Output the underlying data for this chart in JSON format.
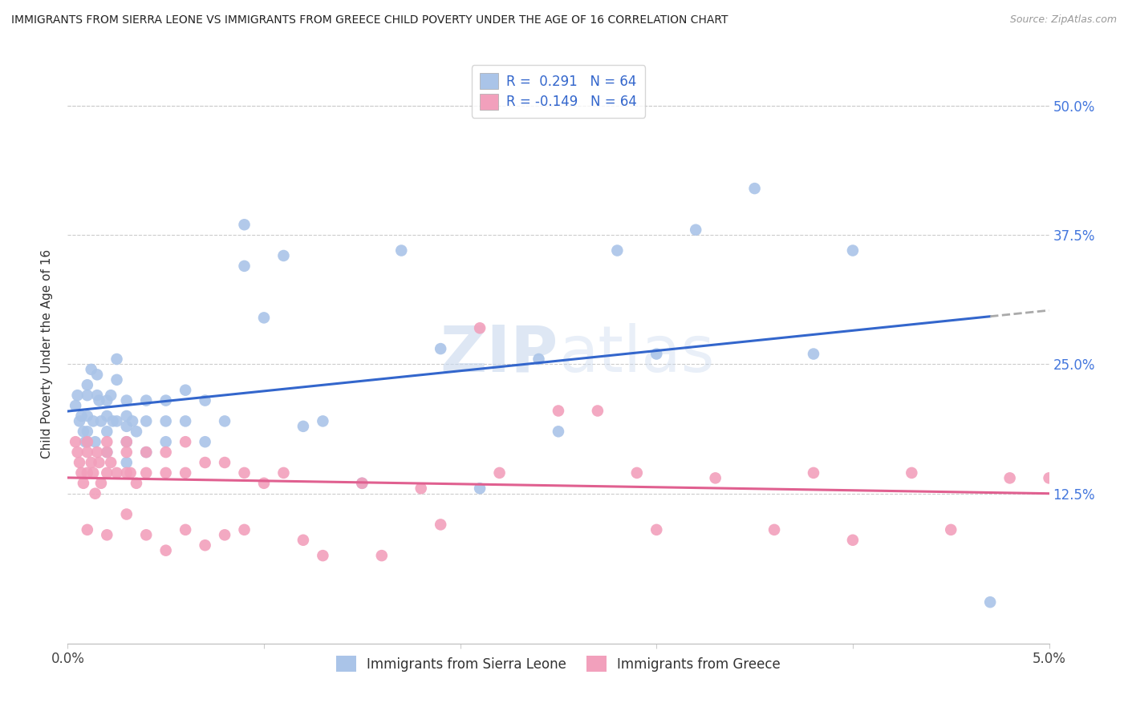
{
  "title": "IMMIGRANTS FROM SIERRA LEONE VS IMMIGRANTS FROM GREECE CHILD POVERTY UNDER THE AGE OF 16 CORRELATION CHART",
  "source": "Source: ZipAtlas.com",
  "ylabel": "Child Poverty Under the Age of 16",
  "yticks": [
    "12.5%",
    "25.0%",
    "37.5%",
    "50.0%"
  ],
  "ytick_vals": [
    0.125,
    0.25,
    0.375,
    0.5
  ],
  "xlim": [
    0.0,
    0.05
  ],
  "ylim": [
    -0.02,
    0.54
  ],
  "legend_r_blue": "R =  0.291",
  "legend_n_blue": "N = 64",
  "legend_r_pink": "R = -0.149",
  "legend_n_pink": "N = 64",
  "legend_label_blue": "Immigrants from Sierra Leone",
  "legend_label_pink": "Immigrants from Greece",
  "blue_color": "#aac4e8",
  "pink_color": "#f2a0bc",
  "line_blue": "#3366cc",
  "line_pink": "#e06090",
  "dashed_color": "#aaaaaa",
  "watermark_color": "#d8e4f0",
  "r_n_color": "#3366cc",
  "sierra_leone_x": [
    0.0004,
    0.0005,
    0.0006,
    0.0007,
    0.0008,
    0.0009,
    0.001,
    0.001,
    0.001,
    0.001,
    0.001,
    0.0012,
    0.0013,
    0.0014,
    0.0015,
    0.0015,
    0.0016,
    0.0017,
    0.002,
    0.002,
    0.002,
    0.002,
    0.0022,
    0.0023,
    0.0025,
    0.0025,
    0.0025,
    0.003,
    0.003,
    0.003,
    0.003,
    0.003,
    0.0033,
    0.0035,
    0.004,
    0.004,
    0.004,
    0.005,
    0.005,
    0.005,
    0.006,
    0.006,
    0.007,
    0.007,
    0.008,
    0.009,
    0.009,
    0.01,
    0.011,
    0.012,
    0.013,
    0.015,
    0.017,
    0.019,
    0.021,
    0.024,
    0.025,
    0.028,
    0.03,
    0.032,
    0.035,
    0.038,
    0.04,
    0.047
  ],
  "sierra_leone_y": [
    0.21,
    0.22,
    0.195,
    0.2,
    0.185,
    0.175,
    0.23,
    0.22,
    0.2,
    0.185,
    0.175,
    0.245,
    0.195,
    0.175,
    0.24,
    0.22,
    0.215,
    0.195,
    0.215,
    0.2,
    0.185,
    0.165,
    0.22,
    0.195,
    0.255,
    0.235,
    0.195,
    0.215,
    0.2,
    0.19,
    0.175,
    0.155,
    0.195,
    0.185,
    0.215,
    0.195,
    0.165,
    0.215,
    0.195,
    0.175,
    0.225,
    0.195,
    0.215,
    0.175,
    0.195,
    0.385,
    0.345,
    0.295,
    0.355,
    0.19,
    0.195,
    0.135,
    0.36,
    0.265,
    0.13,
    0.255,
    0.185,
    0.36,
    0.26,
    0.38,
    0.42,
    0.26,
    0.36,
    0.02
  ],
  "greece_x": [
    0.0004,
    0.0005,
    0.0006,
    0.0007,
    0.0008,
    0.001,
    0.001,
    0.001,
    0.001,
    0.0012,
    0.0013,
    0.0014,
    0.0015,
    0.0016,
    0.0017,
    0.002,
    0.002,
    0.002,
    0.002,
    0.0022,
    0.0025,
    0.003,
    0.003,
    0.003,
    0.003,
    0.0032,
    0.0035,
    0.004,
    0.004,
    0.004,
    0.005,
    0.005,
    0.005,
    0.006,
    0.006,
    0.006,
    0.007,
    0.007,
    0.008,
    0.008,
    0.009,
    0.009,
    0.01,
    0.011,
    0.012,
    0.013,
    0.015,
    0.016,
    0.018,
    0.019,
    0.021,
    0.022,
    0.025,
    0.027,
    0.029,
    0.03,
    0.033,
    0.036,
    0.038,
    0.04,
    0.043,
    0.045,
    0.048,
    0.05
  ],
  "greece_y": [
    0.175,
    0.165,
    0.155,
    0.145,
    0.135,
    0.175,
    0.165,
    0.145,
    0.09,
    0.155,
    0.145,
    0.125,
    0.165,
    0.155,
    0.135,
    0.175,
    0.165,
    0.145,
    0.085,
    0.155,
    0.145,
    0.175,
    0.165,
    0.145,
    0.105,
    0.145,
    0.135,
    0.165,
    0.145,
    0.085,
    0.165,
    0.145,
    0.07,
    0.175,
    0.145,
    0.09,
    0.155,
    0.075,
    0.155,
    0.085,
    0.145,
    0.09,
    0.135,
    0.145,
    0.08,
    0.065,
    0.135,
    0.065,
    0.13,
    0.095,
    0.285,
    0.145,
    0.205,
    0.205,
    0.145,
    0.09,
    0.14,
    0.09,
    0.145,
    0.08,
    0.145,
    0.09,
    0.14,
    0.14
  ]
}
